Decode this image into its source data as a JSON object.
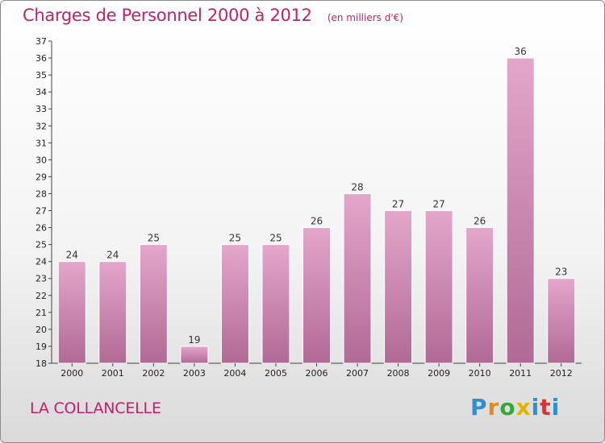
{
  "header": {
    "title": "Charges de Personnel 2000 à 2012",
    "subtitle": "(en milliers d'€)"
  },
  "footer": {
    "place": "LA COLLANCELLE",
    "logo_letters": [
      "P",
      "r",
      "o",
      "x",
      "i",
      "t",
      "i"
    ],
    "logo_colors": [
      "#2f8fd0",
      "#e58a1c",
      "#3aa63a",
      "#e0b400",
      "#2f8fd0",
      "#d03a3a",
      "#2f8fd0"
    ]
  },
  "chart_data": {
    "type": "bar",
    "title": "Charges de Personnel 2000 à 2012",
    "subtitle": "(en milliers d'€)",
    "categories": [
      "2000",
      "2001",
      "2002",
      "2003",
      "2004",
      "2005",
      "2006",
      "2007",
      "2008",
      "2009",
      "2010",
      "2011",
      "2012"
    ],
    "values": [
      24,
      24,
      25,
      19,
      25,
      25,
      26,
      28,
      27,
      27,
      26,
      36,
      23
    ],
    "ylim": [
      18,
      37
    ],
    "yticks": [
      18,
      19,
      20,
      21,
      22,
      23,
      24,
      25,
      26,
      27,
      28,
      29,
      30,
      31,
      32,
      33,
      34,
      35,
      36,
      37
    ],
    "grid": false,
    "bar_color_top": "#e4a6cb",
    "bar_color_bottom": "#b06a95"
  }
}
